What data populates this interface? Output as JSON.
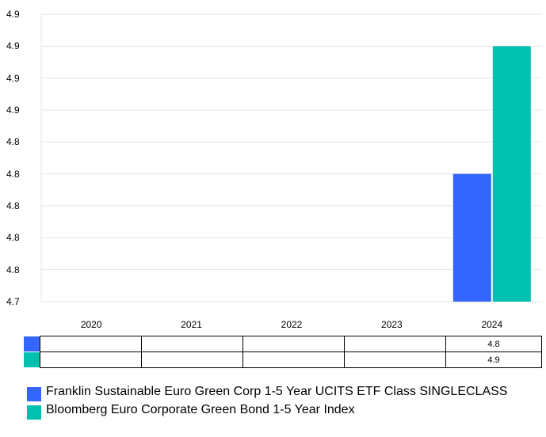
{
  "chart_data": {
    "type": "bar",
    "categories": [
      "2020",
      "2021",
      "2022",
      "2023",
      "2024"
    ],
    "y_tick_labels": [
      "4.9",
      "4.9",
      "4.9",
      "4.9",
      "4.8",
      "4.8",
      "4.8",
      "4.8",
      "4.8",
      "4.7"
    ],
    "ylim": [
      4.7,
      4.925
    ],
    "grid": true,
    "legend_position": "bottom",
    "series": [
      {
        "name": "Franklin Sustainable Euro Green Corp 1-5 Year UCITS ETF Class SINGLECLASS",
        "color": "#3366ff",
        "values": [
          null,
          null,
          null,
          null,
          4.8
        ],
        "table_values": [
          "",
          "",
          "",
          "",
          "4.8"
        ]
      },
      {
        "name": "Bloomberg Euro Corporate Green Bond 1-5 Year Index",
        "color": "#00c0b0",
        "values": [
          null,
          null,
          null,
          null,
          4.9
        ],
        "table_values": [
          "",
          "",
          "",
          "",
          "4.9"
        ]
      }
    ]
  }
}
